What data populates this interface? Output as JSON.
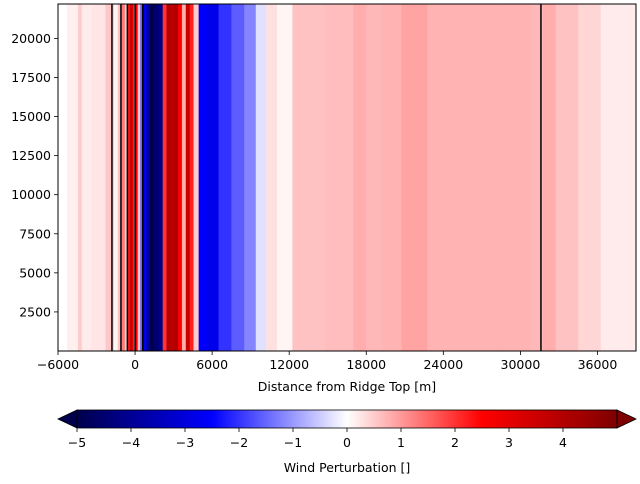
{
  "chart_data": {
    "type": "heatmap",
    "xlabel": "Distance from Ridge Top [m]",
    "ylabel": "",
    "xlim": [
      -6000,
      39000
    ],
    "ylim": [
      0,
      22200
    ],
    "xticks": [
      -6000,
      0,
      6000,
      12000,
      18000,
      24000,
      30000,
      36000
    ],
    "xtick_labels": [
      "−6000",
      "0",
      "6000",
      "12000",
      "18000",
      "24000",
      "30000",
      "36000"
    ],
    "yticks": [
      2500,
      5000,
      7500,
      10000,
      12500,
      15000,
      17500,
      20000
    ],
    "ytick_labels": [
      "2500",
      "5000",
      "7500",
      "10000",
      "12500",
      "15000",
      "17500",
      "20000"
    ],
    "field_note": "values vary only with x (vertical bands)",
    "field": {
      "x": [
        -6000,
        -4600,
        -4300,
        -4000,
        -2800,
        -1800,
        -1500,
        -1200,
        -900,
        -700,
        -500,
        -300,
        -200,
        0,
        100,
        300,
        500,
        800,
        1000,
        1300,
        1600,
        2000,
        2300,
        2600,
        2900,
        3200,
        3500,
        3800,
        4100,
        4400,
        4700,
        5200,
        6000,
        7000,
        8000,
        9000,
        9800,
        10600,
        11500,
        13000,
        16500,
        17500,
        18500,
        20000,
        21500,
        24000,
        27000,
        30000,
        31500,
        32000,
        33500,
        35500,
        37000,
        39000
      ],
      "value": [
        0,
        0.15,
        0.5,
        0.2,
        0.25,
        0.55,
        0.1,
        0.6,
        1.3,
        0.5,
        2.3,
        3.6,
        3.0,
        0.8,
        2.7,
        0.6,
        -1.5,
        -2.8,
        -4.0,
        -5.0,
        -4.6,
        -4.2,
        2.0,
        4.0,
        3.8,
        4.0,
        2.5,
        0.8,
        3.6,
        2.2,
        0.5,
        -2.6,
        -2.8,
        -2.0,
        -1.6,
        -1.2,
        -0.3,
        0.3,
        0.1,
        0.6,
        0.65,
        0.8,
        0.7,
        0.75,
        0.9,
        0.75,
        0.75,
        0.75,
        0.7,
        0.8,
        0.6,
        0.4,
        0.2,
        0.2
      ]
    },
    "contour_lines_x": [
      -1800,
      -1100,
      -600,
      0,
      600,
      31600
    ],
    "colormap": "seismic",
    "colorbar": {
      "label": "Wind Perturbation []",
      "range": [
        -5,
        5
      ],
      "extend": "both",
      "ticks": [
        -5,
        -4,
        -3,
        -2,
        -1,
        0,
        1,
        2,
        3,
        4
      ],
      "tick_labels": [
        "−5",
        "−4",
        "−3",
        "−2",
        "−1",
        "0",
        "1",
        "2",
        "3",
        "4"
      ]
    }
  },
  "colors": {
    "line": "#000000",
    "axis": "#000000"
  }
}
